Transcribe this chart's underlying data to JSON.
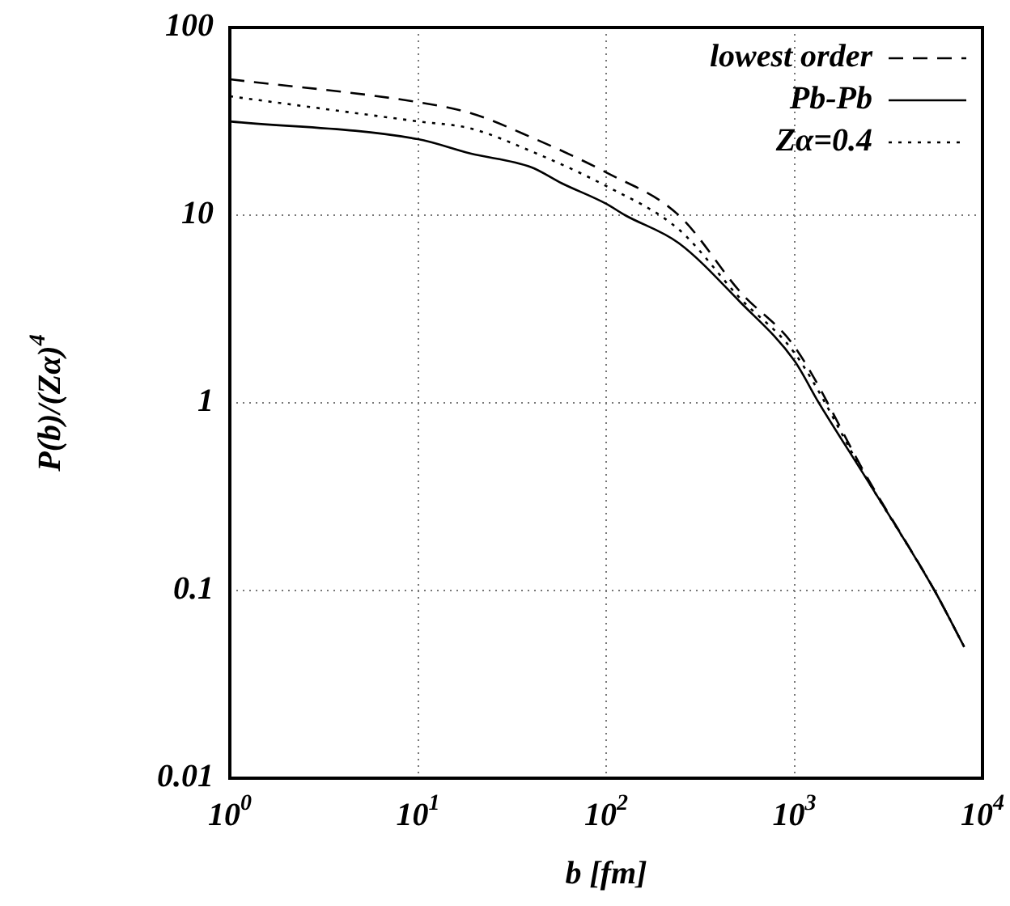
{
  "chart_data": {
    "type": "line",
    "xlabel": "b [fm]",
    "ylabel": "P(b)/(Zα)$^{4}$",
    "log": "xy",
    "grid": true,
    "legend": "top right",
    "marker": "none",
    "xlim": [
      1,
      10000
    ],
    "ylim": [
      0.01,
      100
    ],
    "xticks": [
      {
        "value": 1,
        "label": "10$^{0}$"
      },
      {
        "value": 10,
        "label": "10$^{1}$"
      },
      {
        "value": 100,
        "label": "10$^{2}$"
      },
      {
        "value": 1000,
        "label": "10$^{3}$"
      },
      {
        "value": 10000,
        "label": "10$^{4}$"
      }
    ],
    "yticks": [
      0.01,
      0.1,
      1,
      10,
      100
    ],
    "series": [
      {
        "name": "lowest order",
        "color": "#000000",
        "line_style": "dashed",
        "x": [
          1,
          10,
          19,
          40,
          100,
          243,
          516,
          1000,
          2440,
          5560,
          8000
        ],
        "values": [
          53,
          40,
          35,
          26,
          16.9,
          10,
          3.9,
          2.0,
          0.4,
          0.1,
          0.05
        ]
      },
      {
        "name": "Pb-Pb",
        "color": "#000000",
        "line_style": "solid",
        "x": [
          1,
          10,
          19,
          40,
          58,
          100,
          126,
          243,
          516,
          1000,
          1350,
          2440,
          5560,
          7950
        ],
        "values": [
          31.6,
          25.4,
          21.3,
          18,
          14.8,
          11.5,
          10,
          7.1,
          3.44,
          1.68,
          1,
          0.388,
          0.1,
          0.0506
        ]
      },
      {
        "name": "Zα=0.4",
        "color": "#000000",
        "line_style": "dotted",
        "x": [
          1,
          10,
          19,
          40,
          100,
          243,
          516,
          1000,
          2440,
          5560,
          8000
        ],
        "values": [
          43,
          31.6,
          29,
          21.9,
          14.3,
          8.4,
          3.6,
          1.85,
          0.39,
          0.1,
          0.05
        ]
      }
    ]
  }
}
